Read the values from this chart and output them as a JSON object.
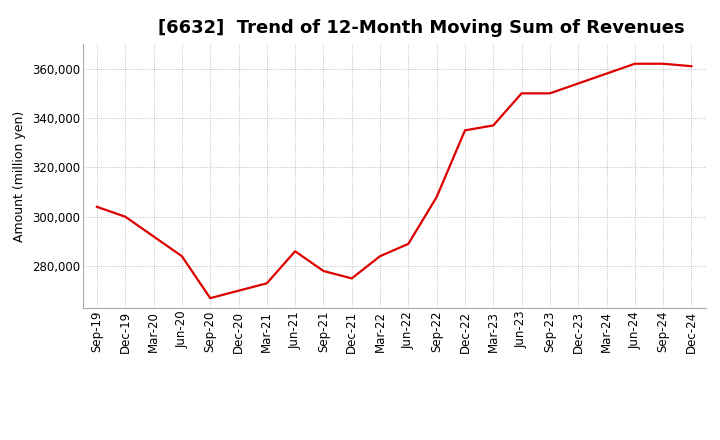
{
  "title": "[6632]  Trend of 12-Month Moving Sum of Revenues",
  "ylabel": "Amount (million yen)",
  "line_color": "#dd0000",
  "background_color": "#ffffff",
  "plot_bg_color": "#ffffff",
  "grid_color": "#999999",
  "x_labels": [
    "Sep-19",
    "Dec-19",
    "Mar-20",
    "Jun-20",
    "Sep-20",
    "Dec-20",
    "Mar-21",
    "Jun-21",
    "Sep-21",
    "Dec-21",
    "Mar-22",
    "Jun-22",
    "Sep-22",
    "Dec-22",
    "Mar-23",
    "Jun-23",
    "Sep-23",
    "Dec-23",
    "Mar-24",
    "Jun-24",
    "Sep-24",
    "Dec-24"
  ],
  "y_values": [
    304000,
    300000,
    292000,
    284000,
    267000,
    270000,
    273000,
    286000,
    278000,
    275000,
    284000,
    289000,
    308000,
    335000,
    337000,
    350000,
    350000,
    354000,
    358000,
    362000,
    362000,
    361000
  ],
  "ylim": [
    263000,
    370000
  ],
  "yticks": [
    280000,
    300000,
    320000,
    340000,
    360000
  ],
  "title_fontsize": 13,
  "axis_fontsize": 9,
  "tick_fontsize": 8.5
}
